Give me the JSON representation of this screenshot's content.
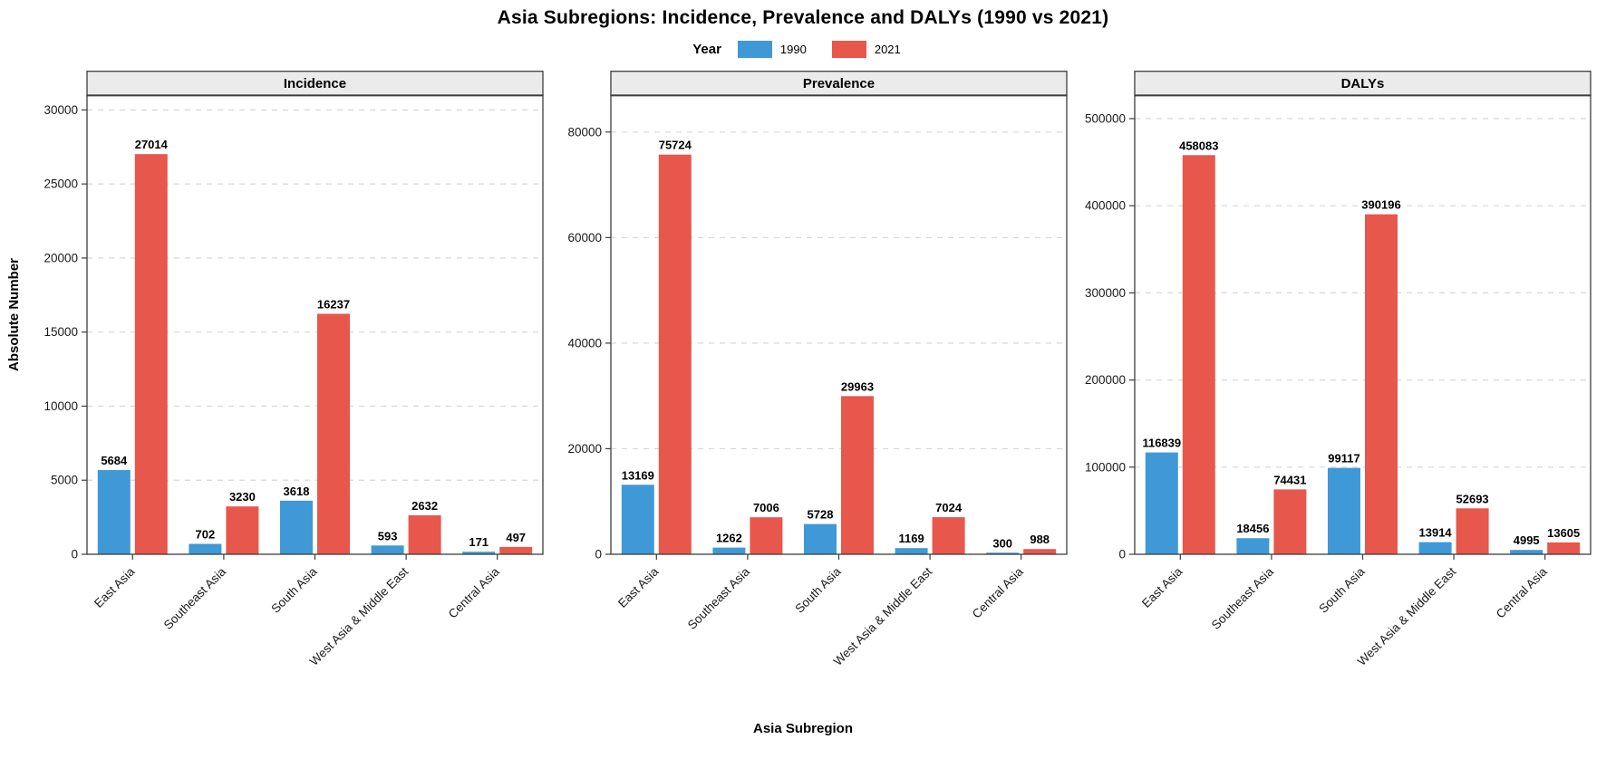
{
  "chart_data": {
    "type": "bar",
    "title": "Asia Subregions: Incidence, Prevalence and DALYs (1990 vs 2021)",
    "xlabel": "Asia Subregion",
    "ylabel": "Absolute Number",
    "legend_title": "Year",
    "legend_position": "top",
    "grid": "horizontal dashed lines at major y ticks",
    "categories": [
      "East Asia",
      "Southeast Asia",
      "South Asia",
      "West Asia & Middle East",
      "Central Asia"
    ],
    "series_names": [
      "1990",
      "2021"
    ],
    "facets": [
      {
        "label": "Incidence",
        "ylim": [
          0,
          31000
        ],
        "yticks": [
          0,
          5000,
          10000,
          15000,
          20000,
          25000,
          30000
        ],
        "series": [
          {
            "name": "1990",
            "values": [
              5684,
              702,
              3618,
              593,
              171
            ]
          },
          {
            "name": "2021",
            "values": [
              27014,
              3230,
              16237,
              2632,
              497
            ]
          }
        ]
      },
      {
        "label": "Prevalence",
        "ylim": [
          0,
          87000
        ],
        "yticks": [
          0,
          20000,
          40000,
          60000,
          80000
        ],
        "series": [
          {
            "name": "1990",
            "values": [
              13169,
              1262,
              5728,
              1169,
              300
            ]
          },
          {
            "name": "2021",
            "values": [
              75724,
              7006,
              29963,
              7024,
              988
            ]
          }
        ]
      },
      {
        "label": "DALYs",
        "ylim": [
          0,
          527000
        ],
        "yticks": [
          0,
          100000,
          200000,
          300000,
          400000,
          500000
        ],
        "series": [
          {
            "name": "1990",
            "values": [
              116839,
              18456,
              99117,
              13914,
              4995
            ]
          },
          {
            "name": "2021",
            "values": [
              458083,
              74431,
              390196,
              52693,
              13605
            ]
          }
        ]
      }
    ]
  },
  "legend": {
    "title": "Year",
    "items": [
      {
        "label": "1990",
        "color": "#3F99D6"
      },
      {
        "label": "2021",
        "color": "#E8574C"
      }
    ]
  },
  "colors": {
    "bar_1990": "#3F99D6",
    "bar_2021": "#E8574C",
    "strip_bg": "#EBEBEB",
    "panel_border": "#3d3d3d",
    "gridline": "#D7D7D7",
    "axis_text": "#1a1a1a"
  }
}
